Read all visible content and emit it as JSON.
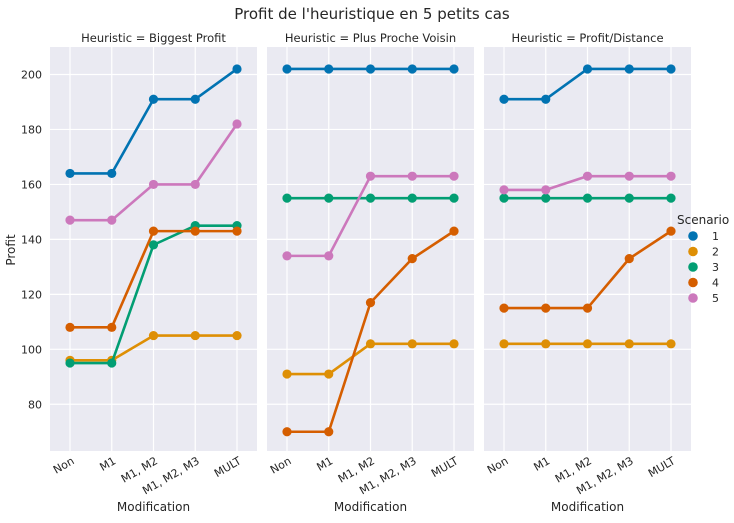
{
  "chart_data": {
    "type": "line",
    "title": "Profit de l'heuristique en 5 petits cas",
    "ylabel": "Profit",
    "xlabel": "Modification",
    "categories": [
      "Non",
      "M1",
      "M1, M2",
      "M1, M2, M3",
      "MULT"
    ],
    "ylim": [
      63,
      210
    ],
    "yticks": [
      80,
      100,
      120,
      140,
      160,
      180,
      200
    ],
    "grid": true,
    "legend": {
      "title": "Scenario",
      "placement": "right",
      "entries": [
        {
          "label": "1",
          "color": "#0173b2"
        },
        {
          "label": "2",
          "color": "#de8f05"
        },
        {
          "label": "3",
          "color": "#029e73"
        },
        {
          "label": "4",
          "color": "#d55e00"
        },
        {
          "label": "5",
          "color": "#cc78bc"
        }
      ]
    },
    "facets": [
      {
        "title": "Heuristic = Biggest Profit",
        "series": [
          {
            "name": "1",
            "values": [
              164,
              164,
              191,
              191,
              202
            ]
          },
          {
            "name": "2",
            "values": [
              96,
              96,
              105,
              105,
              105
            ]
          },
          {
            "name": "3",
            "values": [
              95,
              95,
              138,
              145,
              145
            ]
          },
          {
            "name": "4",
            "values": [
              108,
              108,
              143,
              143,
              143
            ]
          },
          {
            "name": "5",
            "values": [
              147,
              147,
              160,
              160,
              182
            ]
          }
        ]
      },
      {
        "title": "Heuristic = Plus Proche Voisin",
        "series": [
          {
            "name": "1",
            "values": [
              202,
              202,
              202,
              202,
              202
            ]
          },
          {
            "name": "2",
            "values": [
              91,
              91,
              102,
              102,
              102
            ]
          },
          {
            "name": "3",
            "values": [
              155,
              155,
              155,
              155,
              155
            ]
          },
          {
            "name": "4",
            "values": [
              70,
              70,
              117,
              133,
              143
            ]
          },
          {
            "name": "5",
            "values": [
              134,
              134,
              163,
              163,
              163
            ]
          }
        ]
      },
      {
        "title": "Heuristic = Profit/Distance",
        "series": [
          {
            "name": "1",
            "values": [
              191,
              191,
              202,
              202,
              202
            ]
          },
          {
            "name": "2",
            "values": [
              102,
              102,
              102,
              102,
              102
            ]
          },
          {
            "name": "3",
            "values": [
              155,
              155,
              155,
              155,
              155
            ]
          },
          {
            "name": "4",
            "values": [
              115,
              115,
              115,
              133,
              143
            ]
          },
          {
            "name": "5",
            "values": [
              158,
              158,
              163,
              163,
              163
            ]
          }
        ]
      }
    ]
  }
}
